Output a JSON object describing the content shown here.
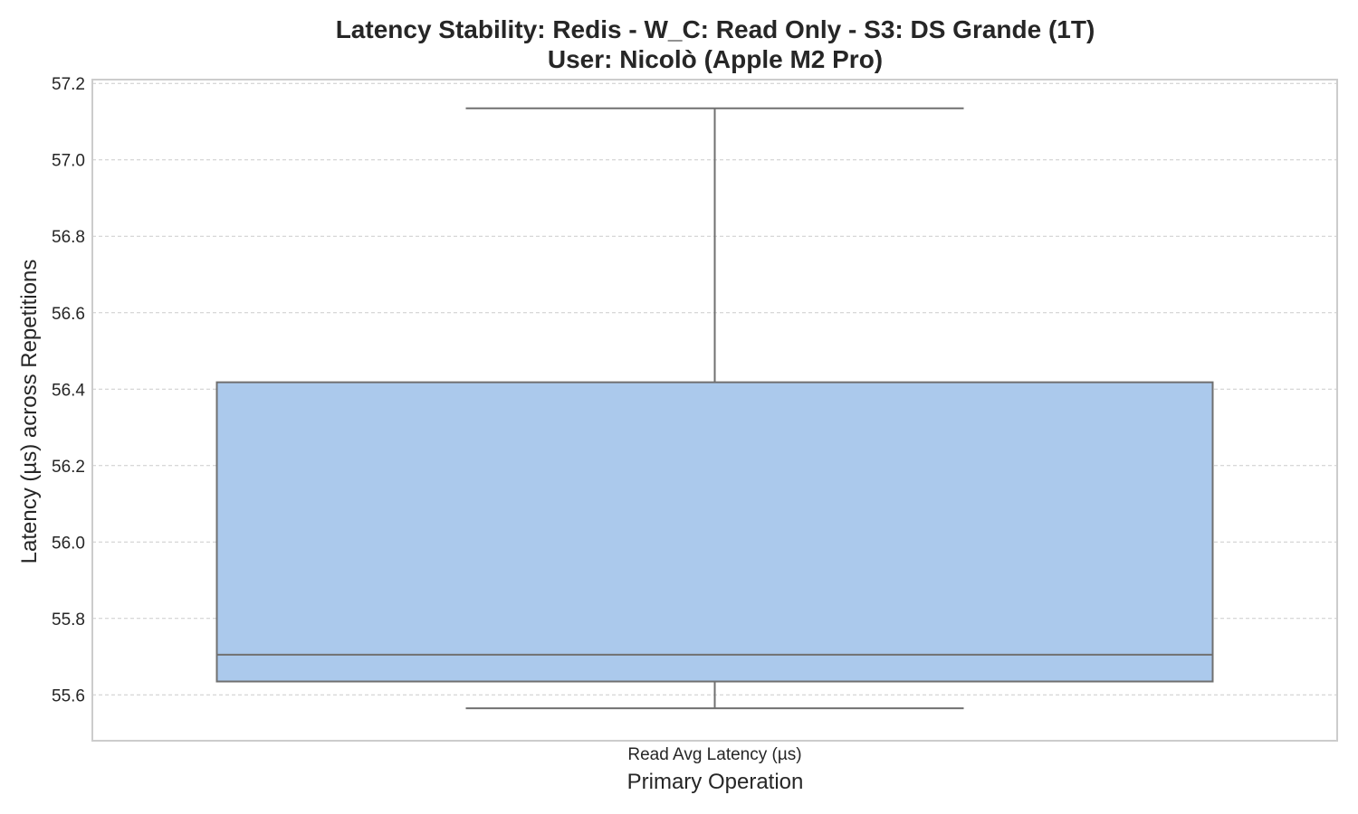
{
  "chart_data": {
    "type": "box",
    "title_line1": "Latency Stability: Redis - W_C: Read Only - S3: DS Grande (1T)",
    "title_line2": "User: Nicolò (Apple M2 Pro)",
    "xlabel": "Primary Operation",
    "ylabel": "Latency (µs) across Repetitions",
    "categories": [
      "Read Avg Latency (µs)"
    ],
    "boxes": [
      {
        "category": "Read Avg Latency (µs)",
        "whisker_low": 55.565,
        "q1": 55.635,
        "median": 55.705,
        "q3": 56.418,
        "whisker_high": 57.135
      }
    ],
    "ylim": [
      55.48,
      57.21
    ],
    "yticks": [
      55.6,
      55.8,
      56.0,
      56.2,
      56.4,
      56.6,
      56.8,
      57.0,
      57.2
    ],
    "ytick_labels": [
      "55.6",
      "55.8",
      "56.0",
      "56.2",
      "56.4",
      "56.6",
      "56.8",
      "57.0",
      "57.2"
    ],
    "grid": true,
    "colors": {
      "box_fill": "#abc9ec",
      "box_edge": "#707070",
      "grid": "#cccccc",
      "frame": "#cccccc",
      "text": "#262626"
    }
  }
}
